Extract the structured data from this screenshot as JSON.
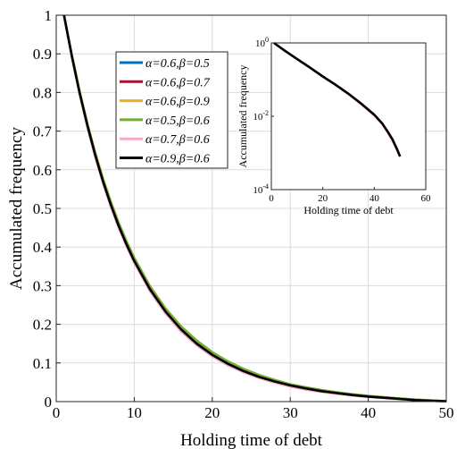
{
  "chart_data": [
    {
      "type": "line",
      "title": "",
      "xlabel": "Holding time of debt",
      "ylabel": "Accumulated frequency",
      "xlim": [
        0,
        50
      ],
      "ylim": [
        0,
        1
      ],
      "xticks": [
        "0",
        "10",
        "20",
        "30",
        "40",
        "50"
      ],
      "yticks": [
        "0",
        "0.1",
        "0.2",
        "0.3",
        "0.4",
        "0.5",
        "0.6",
        "0.7",
        "0.8",
        "0.9",
        "1"
      ],
      "grid": true,
      "legend_position": "top-left",
      "x": [
        1,
        2,
        3,
        4,
        5,
        6,
        7,
        8,
        9,
        10,
        12,
        14,
        16,
        18,
        20,
        22,
        24,
        26,
        28,
        30,
        32,
        34,
        36,
        38,
        40,
        42,
        44,
        46,
        48,
        50
      ],
      "series": [
        {
          "name": "α=0.6,β=0.5",
          "color": "#0072BD",
          "values": [
            1.0,
            0.895,
            0.8,
            0.715,
            0.64,
            0.572,
            0.512,
            0.458,
            0.41,
            0.367,
            0.294,
            0.236,
            0.19,
            0.153,
            0.124,
            0.1,
            0.081,
            0.066,
            0.053,
            0.043,
            0.035,
            0.028,
            0.023,
            0.018,
            0.014,
            0.011,
            0.008,
            0.005,
            0.003,
            0.001
          ]
        },
        {
          "name": "α=0.6,β=0.7",
          "color": "#A2142F",
          "values": [
            1.0,
            0.893,
            0.797,
            0.711,
            0.635,
            0.567,
            0.506,
            0.452,
            0.404,
            0.361,
            0.288,
            0.23,
            0.184,
            0.148,
            0.119,
            0.096,
            0.077,
            0.062,
            0.05,
            0.04,
            0.032,
            0.026,
            0.021,
            0.016,
            0.013,
            0.01,
            0.007,
            0.004,
            0.002,
            0.001
          ]
        },
        {
          "name": "α=0.6,β=0.9",
          "color": "#EDB120",
          "values": [
            1.0,
            0.894,
            0.799,
            0.713,
            0.637,
            0.569,
            0.508,
            0.454,
            0.406,
            0.363,
            0.29,
            0.232,
            0.186,
            0.15,
            0.121,
            0.098,
            0.079,
            0.064,
            0.051,
            0.041,
            0.033,
            0.027,
            0.022,
            0.017,
            0.013,
            0.01,
            0.007,
            0.004,
            0.002,
            0.001
          ]
        },
        {
          "name": "α=0.5,β=0.6",
          "color": "#77AC30",
          "values": [
            1.0,
            0.897,
            0.803,
            0.719,
            0.644,
            0.577,
            0.517,
            0.463,
            0.415,
            0.372,
            0.299,
            0.241,
            0.195,
            0.158,
            0.128,
            0.104,
            0.085,
            0.069,
            0.056,
            0.045,
            0.037,
            0.03,
            0.024,
            0.019,
            0.015,
            0.011,
            0.008,
            0.005,
            0.003,
            0.001
          ]
        },
        {
          "name": "α=0.7,β=0.6",
          "color": "#F7A8C8",
          "values": [
            1.0,
            0.892,
            0.796,
            0.71,
            0.633,
            0.565,
            0.504,
            0.45,
            0.402,
            0.359,
            0.286,
            0.228,
            0.182,
            0.146,
            0.117,
            0.094,
            0.076,
            0.061,
            0.049,
            0.039,
            0.031,
            0.025,
            0.02,
            0.016,
            0.012,
            0.009,
            0.006,
            0.004,
            0.002,
            0.001
          ]
        },
        {
          "name": "α=0.9,β=0.6",
          "color": "#000000",
          "values": [
            1.0,
            0.894,
            0.799,
            0.714,
            0.638,
            0.57,
            0.509,
            0.455,
            0.407,
            0.364,
            0.291,
            0.233,
            0.187,
            0.15,
            0.121,
            0.098,
            0.079,
            0.064,
            0.052,
            0.042,
            0.034,
            0.027,
            0.022,
            0.017,
            0.013,
            0.01,
            0.007,
            0.004,
            0.002,
            0.001
          ]
        }
      ]
    },
    {
      "type": "line",
      "title": "",
      "xlabel": "Holding time of debt",
      "ylabel": "Accumulated frequency",
      "xlim": [
        0,
        60
      ],
      "ylim": [
        0.0001,
        1
      ],
      "y_scale": "log",
      "xticks": [
        "0",
        "20",
        "40",
        "60"
      ],
      "yticks": [
        {
          "base": "10",
          "exp": "0",
          "value": 1
        },
        {
          "base": "10",
          "exp": "-2",
          "value": 0.01
        },
        {
          "base": "10",
          "exp": "-4",
          "value": 0.0001
        }
      ],
      "grid": false,
      "x": [
        1,
        5,
        10,
        15,
        20,
        25,
        30,
        35,
        40,
        43,
        45,
        47,
        48,
        49,
        50
      ],
      "series": [
        {
          "color": "#F7A8C8",
          "values": [
            1.0,
            0.62,
            0.36,
            0.21,
            0.12,
            0.07,
            0.04,
            0.021,
            0.0105,
            0.0062,
            0.0038,
            0.0022,
            0.0016,
            0.0011,
            0.0008
          ]
        },
        {
          "color": "#000000",
          "values": [
            1.0,
            0.63,
            0.365,
            0.212,
            0.122,
            0.072,
            0.041,
            0.022,
            0.011,
            0.0065,
            0.004,
            0.0024,
            0.0017,
            0.0012,
            0.0008
          ]
        }
      ]
    }
  ]
}
